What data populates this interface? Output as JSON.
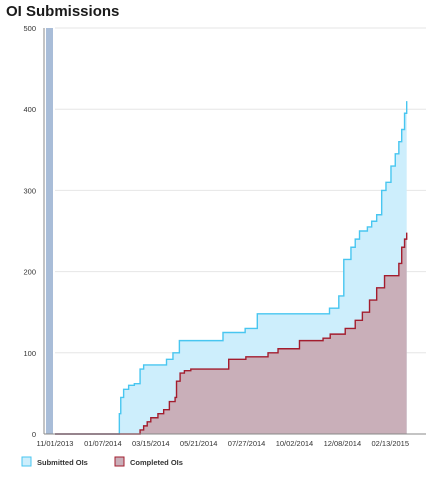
{
  "chart_data": {
    "type": "area",
    "title": "OI Submissions",
    "xlabel": "",
    "ylabel": "",
    "x_ticks": [
      "11/01/2013",
      "01/07/2014",
      "03/15/2014",
      "05/21/2014",
      "07/27/2014",
      "10/02/2014",
      "12/08/2014",
      "02/13/2015"
    ],
    "x_range": [
      "2013-11-01",
      "2015-04-04"
    ],
    "ylim": [
      0,
      500
    ],
    "y_ticks": [
      0,
      100,
      200,
      300,
      400,
      500
    ],
    "grid": true,
    "legend_position": "bottom-left",
    "series": [
      {
        "name": "Submitted OIs",
        "fill": "#cdeefc",
        "stroke": "#48c6f0",
        "points": [
          [
            "2013-11-01",
            0
          ],
          [
            "2014-01-29",
            0
          ],
          [
            "2014-01-30",
            25
          ],
          [
            "2014-02-01",
            45
          ],
          [
            "2014-02-05",
            55
          ],
          [
            "2014-02-12",
            60
          ],
          [
            "2014-02-20",
            62
          ],
          [
            "2014-02-28",
            80
          ],
          [
            "2014-03-05",
            85
          ],
          [
            "2014-04-05",
            85
          ],
          [
            "2014-04-06",
            92
          ],
          [
            "2014-04-15",
            100
          ],
          [
            "2014-04-24",
            115
          ],
          [
            "2014-06-23",
            115
          ],
          [
            "2014-06-24",
            125
          ],
          [
            "2014-07-24",
            125
          ],
          [
            "2014-07-25",
            130
          ],
          [
            "2014-08-10",
            130
          ],
          [
            "2014-08-11",
            148
          ],
          [
            "2014-11-19",
            148
          ],
          [
            "2014-11-20",
            155
          ],
          [
            "2014-12-02",
            155
          ],
          [
            "2014-12-03",
            170
          ],
          [
            "2014-12-08",
            170
          ],
          [
            "2014-12-10",
            215
          ],
          [
            "2014-12-18",
            215
          ],
          [
            "2014-12-20",
            230
          ],
          [
            "2014-12-26",
            240
          ],
          [
            "2015-01-01",
            250
          ],
          [
            "2015-01-12",
            255
          ],
          [
            "2015-01-18",
            262
          ],
          [
            "2015-01-25",
            270
          ],
          [
            "2015-02-01",
            300
          ],
          [
            "2015-02-07",
            310
          ],
          [
            "2015-02-14",
            330
          ],
          [
            "2015-02-20",
            345
          ],
          [
            "2015-02-25",
            360
          ],
          [
            "2015-03-01",
            375
          ],
          [
            "2015-03-05",
            395
          ],
          [
            "2015-03-08",
            410
          ]
        ]
      },
      {
        "name": "Completed OIs",
        "fill": "#c9afb9",
        "stroke": "#a31d2e",
        "points": [
          [
            "2013-11-01",
            0
          ],
          [
            "2014-02-20",
            0
          ],
          [
            "2014-02-28",
            5
          ],
          [
            "2014-03-05",
            10
          ],
          [
            "2014-03-10",
            15
          ],
          [
            "2014-03-15",
            20
          ],
          [
            "2014-03-25",
            25
          ],
          [
            "2014-04-02",
            30
          ],
          [
            "2014-04-10",
            40
          ],
          [
            "2014-04-18",
            45
          ],
          [
            "2014-04-20",
            65
          ],
          [
            "2014-04-25",
            75
          ],
          [
            "2014-05-01",
            78
          ],
          [
            "2014-05-10",
            80
          ],
          [
            "2014-07-01",
            80
          ],
          [
            "2014-07-02",
            92
          ],
          [
            "2014-07-25",
            92
          ],
          [
            "2014-07-26",
            95
          ],
          [
            "2014-08-25",
            95
          ],
          [
            "2014-08-26",
            100
          ],
          [
            "2014-09-08",
            100
          ],
          [
            "2014-09-09",
            105
          ],
          [
            "2014-10-08",
            105
          ],
          [
            "2014-10-09",
            115
          ],
          [
            "2014-11-10",
            115
          ],
          [
            "2014-11-11",
            118
          ],
          [
            "2014-11-20",
            118
          ],
          [
            "2014-11-21",
            123
          ],
          [
            "2014-12-11",
            123
          ],
          [
            "2014-12-12",
            130
          ],
          [
            "2014-12-25",
            130
          ],
          [
            "2014-12-26",
            140
          ],
          [
            "2015-01-05",
            150
          ],
          [
            "2015-01-15",
            165
          ],
          [
            "2015-01-25",
            180
          ],
          [
            "2015-02-05",
            195
          ],
          [
            "2015-02-20",
            195
          ],
          [
            "2015-02-25",
            210
          ],
          [
            "2015-03-01",
            230
          ],
          [
            "2015-03-05",
            240
          ],
          [
            "2015-03-08",
            248
          ]
        ]
      }
    ]
  }
}
